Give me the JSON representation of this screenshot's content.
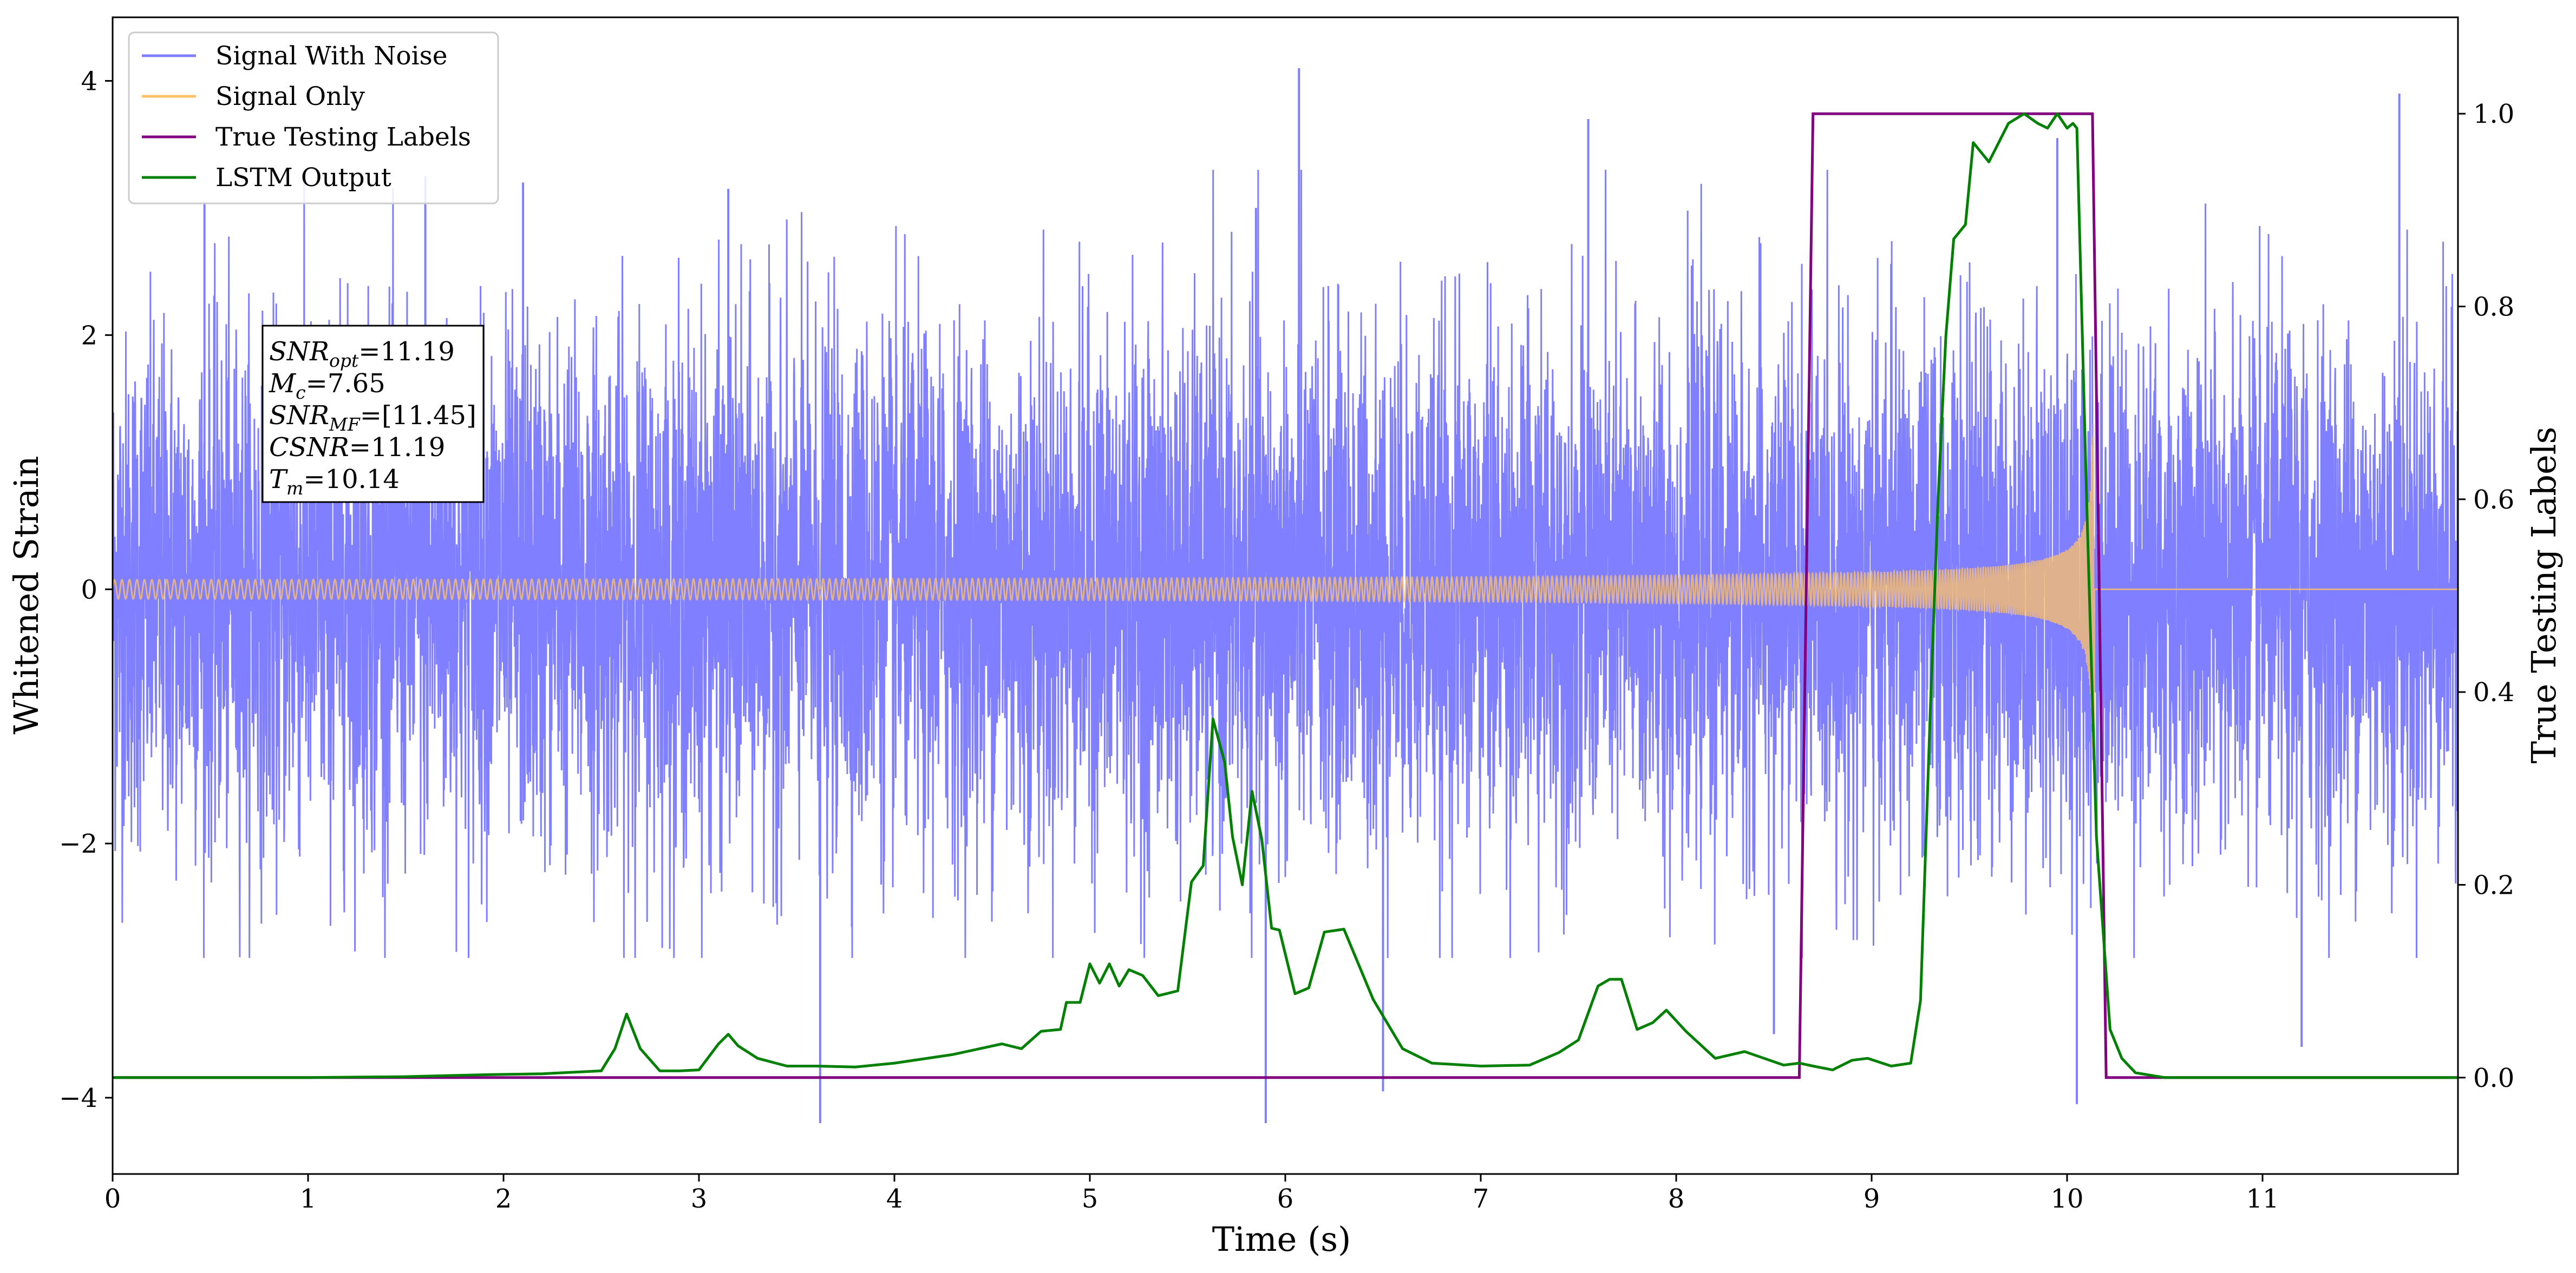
{
  "chart_data": {
    "type": "line",
    "xlabel": "Time (s)",
    "ylabel_left": "Whitened Strain",
    "ylabel_right": "True Testing Labels",
    "xlim": [
      0,
      12
    ],
    "ylim_left": [
      -4.6,
      4.5
    ],
    "ylim_right": [
      -0.1,
      1.1
    ],
    "x_ticks": [
      0,
      1,
      2,
      3,
      4,
      5,
      6,
      7,
      8,
      9,
      10,
      11
    ],
    "x_tick_labels": [
      "0",
      "1",
      "2",
      "3",
      "4",
      "5",
      "6",
      "7",
      "8",
      "9",
      "10",
      "11"
    ],
    "y_left_ticks": [
      -4,
      -2,
      0,
      2,
      4
    ],
    "y_left_tick_labels": [
      "−4",
      "−2",
      "0",
      "2",
      "4"
    ],
    "y_right_ticks": [
      0.0,
      0.2,
      0.4,
      0.6,
      0.8,
      1.0
    ],
    "y_right_tick_labels": [
      "0.0",
      "0.2",
      "0.4",
      "0.6",
      "0.8",
      "1.0"
    ],
    "grid": false,
    "legend_placement": "top-left",
    "legend": [
      {
        "name": "Signal With Noise",
        "color": "#7f7fff"
      },
      {
        "name": "Signal Only",
        "color": "#ffc266"
      },
      {
        "name": "True Testing Labels",
        "color": "#800080"
      },
      {
        "name": "LSTM Output",
        "color": "#008000"
      }
    ],
    "series": [
      {
        "name": "Signal With Noise",
        "axis": "left",
        "color": "#7f7fff",
        "description_values": {
          "noise_std": 1.0,
          "typical_range": [
            -3.0,
            3.5
          ]
        },
        "notable_spikes": [
          [
            0.47,
            3.05
          ],
          [
            1.6,
            3.25
          ],
          [
            2.1,
            3.2
          ],
          [
            3.15,
            3.15
          ],
          [
            3.62,
            -4.2
          ],
          [
            5.85,
            3.0
          ],
          [
            6.07,
            4.1
          ],
          [
            5.9,
            -4.2
          ],
          [
            6.5,
            -3.95
          ],
          [
            7.55,
            3.7
          ],
          [
            8.5,
            -3.5
          ],
          [
            9.95,
            3.55
          ],
          [
            10.05,
            -4.05
          ],
          [
            11.7,
            3.9
          ],
          [
            11.2,
            -3.6
          ]
        ]
      },
      {
        "name": "Signal Only",
        "axis": "left",
        "color": "#ffc266",
        "description_values": {
          "start_amplitude": 0.05,
          "merger_time": 10.14,
          "peak_amplitude": 1.3
        }
      },
      {
        "name": "True Testing Labels",
        "axis": "right",
        "color": "#800080",
        "x": [
          0,
          8.63,
          8.7,
          10.13,
          10.2,
          12
        ],
        "y": [
          0,
          0,
          1,
          1,
          0,
          0
        ]
      },
      {
        "name": "LSTM Output",
        "axis": "right",
        "color": "#008000",
        "x": [
          0,
          0.3,
          1.0,
          1.5,
          1.9,
          2.2,
          2.5,
          2.57,
          2.63,
          2.7,
          2.8,
          2.9,
          3.0,
          3.1,
          3.15,
          3.2,
          3.3,
          3.45,
          3.6,
          3.8,
          4.0,
          4.3,
          4.55,
          4.65,
          4.75,
          4.85,
          4.88,
          4.95,
          5.0,
          5.05,
          5.1,
          5.15,
          5.2,
          5.27,
          5.35,
          5.45,
          5.52,
          5.58,
          5.63,
          5.69,
          5.73,
          5.78,
          5.83,
          5.88,
          5.93,
          5.97,
          6.05,
          6.12,
          6.2,
          6.3,
          6.45,
          6.6,
          6.75,
          7.0,
          7.25,
          7.4,
          7.5,
          7.6,
          7.66,
          7.72,
          7.8,
          7.88,
          7.95,
          8.05,
          8.2,
          8.35,
          8.45,
          8.55,
          8.63,
          8.7,
          8.8,
          8.9,
          8.98,
          9.1,
          9.2,
          9.25,
          9.3,
          9.34,
          9.38,
          9.42,
          9.48,
          9.52,
          9.6,
          9.7,
          9.78,
          9.85,
          9.9,
          9.95,
          10.0,
          10.03,
          10.05,
          10.1,
          10.15,
          10.22,
          10.28,
          10.35,
          10.5,
          11.0,
          12.0
        ],
        "y": [
          0.0,
          0.0,
          0.0,
          0.001,
          0.003,
          0.004,
          0.007,
          0.03,
          0.066,
          0.03,
          0.007,
          0.007,
          0.008,
          0.035,
          0.045,
          0.033,
          0.02,
          0.012,
          0.012,
          0.011,
          0.015,
          0.024,
          0.035,
          0.03,
          0.048,
          0.05,
          0.078,
          0.078,
          0.118,
          0.098,
          0.118,
          0.095,
          0.112,
          0.106,
          0.085,
          0.09,
          0.203,
          0.22,
          0.372,
          0.327,
          0.25,
          0.2,
          0.297,
          0.247,
          0.155,
          0.153,
          0.087,
          0.093,
          0.151,
          0.154,
          0.081,
          0.03,
          0.015,
          0.012,
          0.013,
          0.026,
          0.039,
          0.095,
          0.102,
          0.102,
          0.05,
          0.057,
          0.07,
          0.048,
          0.02,
          0.027,
          0.02,
          0.013,
          0.015,
          0.012,
          0.008,
          0.018,
          0.02,
          0.012,
          0.015,
          0.08,
          0.38,
          0.6,
          0.77,
          0.87,
          0.885,
          0.97,
          0.95,
          0.99,
          1.0,
          0.99,
          0.985,
          1.0,
          0.985,
          0.99,
          0.985,
          0.6,
          0.25,
          0.05,
          0.02,
          0.005,
          0.0,
          0.0,
          0.0
        ]
      }
    ],
    "annotation": {
      "lines": [
        {
          "base": "SNR",
          "sub": "opt",
          "value": "=11.19"
        },
        {
          "base": "M",
          "sub": "c",
          "value": "=7.65"
        },
        {
          "base": "SNR",
          "sub": "MF",
          "value": "=[11.45]"
        },
        {
          "base": "CSNR",
          "sub": "",
          "value": "=11.19"
        },
        {
          "base": "T",
          "sub": "m",
          "value": "=10.14"
        }
      ]
    }
  }
}
